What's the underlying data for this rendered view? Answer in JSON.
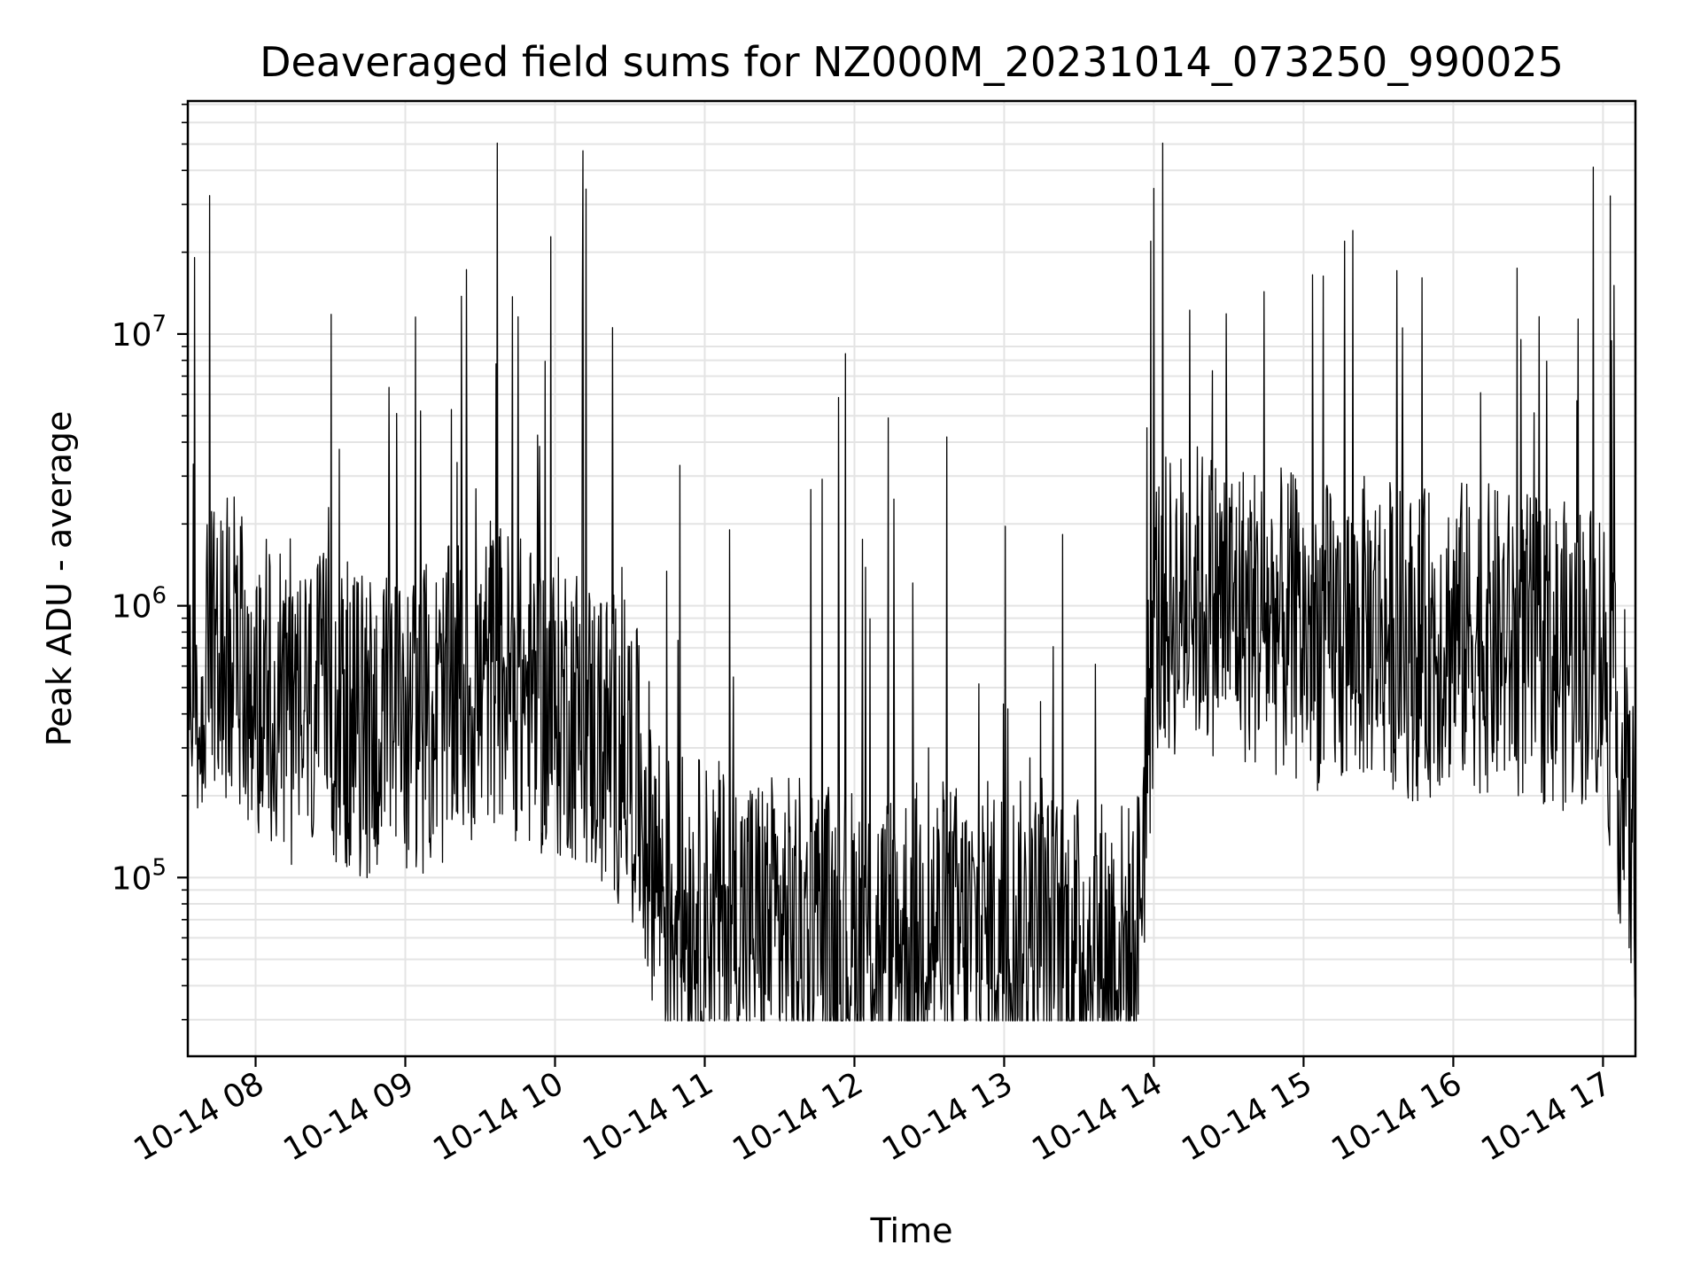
{
  "chart_data": {
    "type": "line",
    "title": "Deaveraged field sums for NZ000M_20231014_073250_990025",
    "xlabel": "Time",
    "ylabel": "Peak ADU - average",
    "yscale": "log",
    "ylim": [
      22000,
      72000000
    ],
    "xlim": [
      "2023-10-14T07:32:50",
      "2023-10-14T17:13:00"
    ],
    "grid": true,
    "colors": {
      "line": "#000000",
      "grid": "#e4e4e4"
    },
    "x_ticks": [
      {
        "value": "2023-10-14T08:00",
        "label": "10-14 08"
      },
      {
        "value": "2023-10-14T09:00",
        "label": "10-14 09"
      },
      {
        "value": "2023-10-14T10:00",
        "label": "10-14 10"
      },
      {
        "value": "2023-10-14T11:00",
        "label": "10-14 11"
      },
      {
        "value": "2023-10-14T12:00",
        "label": "10-14 12"
      },
      {
        "value": "2023-10-14T13:00",
        "label": "10-14 13"
      },
      {
        "value": "2023-10-14T14:00",
        "label": "10-14 14"
      },
      {
        "value": "2023-10-14T15:00",
        "label": "10-14 15"
      },
      {
        "value": "2023-10-14T16:00",
        "label": "10-14 16"
      },
      {
        "value": "2023-10-14T17:00",
        "label": "10-14 17"
      }
    ],
    "y_ticks": [
      {
        "value": 100000,
        "base": "10",
        "exp": "5"
      },
      {
        "value": 1000000,
        "base": "10",
        "exp": "6"
      },
      {
        "value": 10000000,
        "base": "10",
        "exp": "7"
      }
    ],
    "series": [
      {
        "x": [
          "2023-10-14T07:33",
          "2023-10-14T07:40",
          "2023-10-14T07:50",
          "2023-10-14T07:55",
          "2023-10-14T08:00",
          "2023-10-14T08:06",
          "2023-10-14T08:15",
          "2023-10-14T08:30",
          "2023-10-14T08:45",
          "2023-10-14T09:00",
          "2023-10-14T09:15",
          "2023-10-14T09:20",
          "2023-10-14T09:30",
          "2023-10-14T09:34",
          "2023-10-14T09:45",
          "2023-10-14T10:00",
          "2023-10-14T10:05",
          "2023-10-14T10:15",
          "2023-10-14T10:25",
          "2023-10-14T10:30",
          "2023-10-14T10:45",
          "2023-10-14T10:59",
          "2023-10-14T11:15",
          "2023-10-14T11:30",
          "2023-10-14T11:45",
          "2023-10-14T12:00",
          "2023-10-14T12:15",
          "2023-10-14T12:30",
          "2023-10-14T12:45",
          "2023-10-14T13:00",
          "2023-10-14T13:15",
          "2023-10-14T13:30",
          "2023-10-14T13:45",
          "2023-10-14T13:53",
          "2023-10-14T14:00",
          "2023-10-14T14:15",
          "2023-10-14T14:30",
          "2023-10-14T14:45",
          "2023-10-14T15:00",
          "2023-10-14T15:15",
          "2023-10-14T15:30",
          "2023-10-14T15:45",
          "2023-10-14T16:00",
          "2023-10-14T16:15",
          "2023-10-14T16:30",
          "2023-10-14T16:45",
          "2023-10-14T17:00",
          "2023-10-14T17:10",
          "2023-10-14T17:13"
        ],
        "values": [
          500000,
          600000,
          700000,
          600000,
          550000,
          450000,
          400000,
          420000,
          350000,
          380000,
          400000,
          500000,
          450000,
          600000,
          500000,
          400000,
          450000,
          350000,
          300000,
          280000,
          80000,
          75000,
          70000,
          65000,
          62000,
          60000,
          58000,
          65000,
          60000,
          65000,
          58000,
          55000,
          55000,
          50000,
          900000,
          1100000,
          1000000,
          900000,
          800000,
          750000,
          850000,
          700000,
          800000,
          750000,
          700000,
          650000,
          700000,
          150000,
          120000
        ]
      }
    ]
  }
}
